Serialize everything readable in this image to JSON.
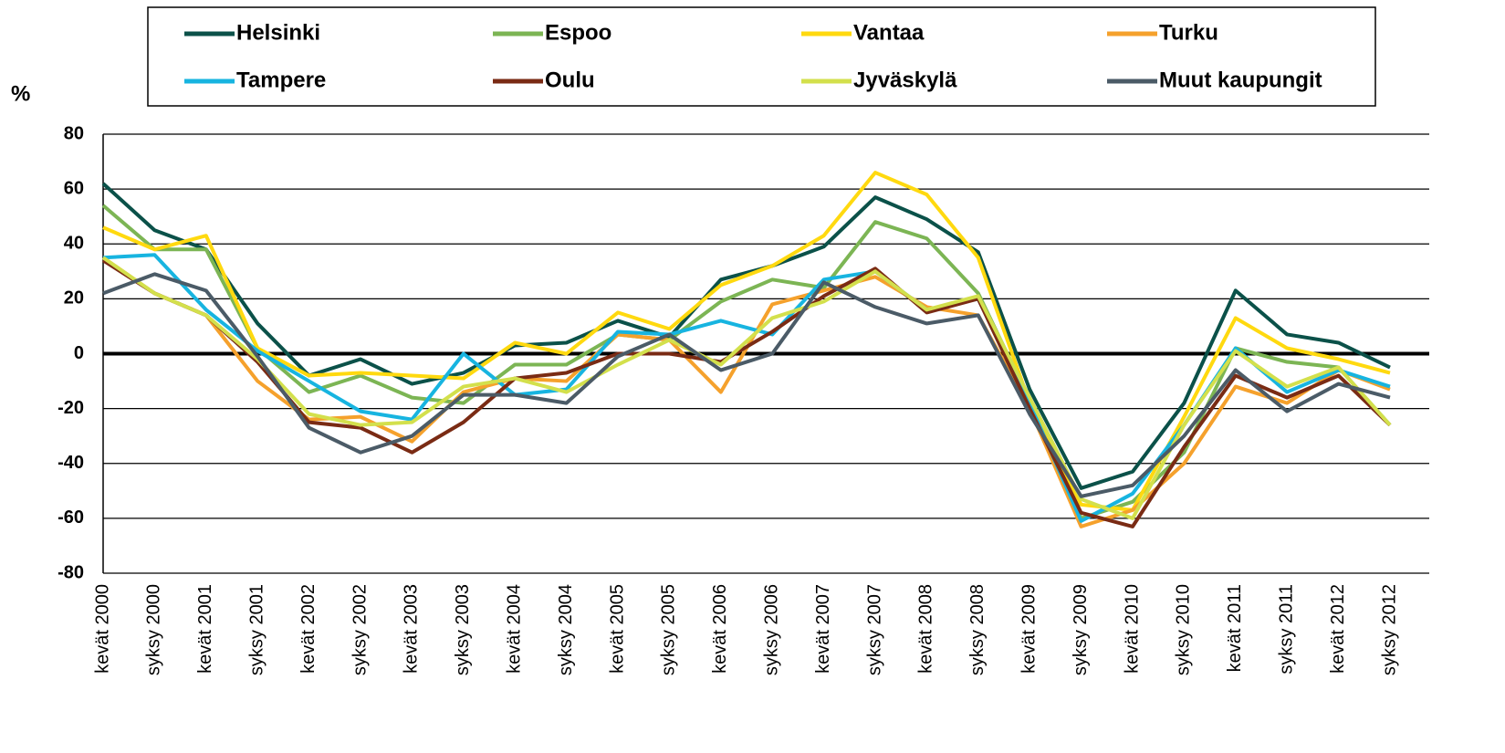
{
  "chart_data": {
    "type": "line",
    "y_unit_label": "%",
    "categories": [
      "kevät 2000",
      "syksy 2000",
      "kevät 2001",
      "syksy 2001",
      "kevät 2002",
      "syksy 2002",
      "kevät 2003",
      "syksy 2003",
      "kevät 2004",
      "syksy 2004",
      "kevät 2005",
      "syksy 2005",
      "kevät 2006",
      "syksy 2006",
      "kevät 2007",
      "syksy 2007",
      "kevät 2008",
      "syksy 2008",
      "kevät 2009",
      "syksy 2009",
      "kevät 2010",
      "syksy 2010",
      "kevät 2011",
      "syksy 2011",
      "kevät 2012",
      "syksy 2012"
    ],
    "series": [
      {
        "name": "Helsinki",
        "color": "#0b5149",
        "values": [
          62,
          45,
          38,
          11,
          -8,
          -2,
          -11,
          -7,
          3,
          4,
          12,
          6,
          27,
          32,
          39,
          57,
          49,
          37,
          -13,
          -49,
          -43,
          -18,
          23,
          7,
          4,
          -5
        ]
      },
      {
        "name": "Espoo",
        "color": "#7cb554",
        "values": [
          54,
          38,
          38,
          2,
          -14,
          -8,
          -16,
          -18,
          -4,
          -4,
          7,
          5,
          19,
          27,
          24,
          48,
          42,
          22,
          -17,
          -60,
          -54,
          -36,
          2,
          -3,
          -5,
          -26
        ]
      },
      {
        "name": "Vantaa",
        "color": "#ffd90f",
        "values": [
          46,
          38,
          43,
          2,
          -8,
          -7,
          -8,
          -9,
          4,
          0,
          15,
          9,
          25,
          32,
          43,
          66,
          58,
          35,
          -18,
          -55,
          -57,
          -23,
          13,
          2,
          -2,
          -7
        ]
      },
      {
        "name": "Turku",
        "color": "#f5a12c",
        "values": [
          35,
          22,
          14,
          -10,
          -24,
          -23,
          -32,
          -14,
          -9,
          -10,
          7,
          5,
          -14,
          18,
          23,
          28,
          17,
          14,
          -20,
          -63,
          -57,
          -40,
          -12,
          -18,
          -6,
          -13
        ]
      },
      {
        "name": "Tampere",
        "color": "#17b4e0",
        "values": [
          35,
          36,
          16,
          1,
          -10,
          -21,
          -24,
          0,
          -15,
          -13,
          8,
          7,
          12,
          7,
          27,
          30,
          16,
          20,
          -18,
          -61,
          -51,
          -26,
          2,
          -14,
          -6,
          -12
        ]
      },
      {
        "name": "Oulu",
        "color": "#7a2b14",
        "values": [
          34,
          22,
          14,
          -3,
          -25,
          -27,
          -36,
          -25,
          -9,
          -7,
          0,
          0,
          -3,
          8,
          21,
          31,
          15,
          20,
          -20,
          -58,
          -63,
          -34,
          -8,
          -16,
          -8,
          -26
        ]
      },
      {
        "name": "Jyväskylä",
        "color": "#d3e04c",
        "values": [
          35,
          22,
          14,
          -2,
          -22,
          -26,
          -25,
          -12,
          -9,
          -14,
          -4,
          5,
          -4,
          13,
          19,
          30,
          16,
          21,
          -16,
          -53,
          -60,
          -26,
          1,
          -12,
          -5,
          -26
        ]
      },
      {
        "name": "Muut kaupungit",
        "color": "#4b5b67",
        "values": [
          22,
          29,
          23,
          -1,
          -27,
          -36,
          -30,
          -15,
          -15,
          -18,
          -1,
          7,
          -6,
          0,
          26,
          17,
          11,
          14,
          -22,
          -52,
          -48,
          -30,
          -6,
          -21,
          -11,
          -16
        ]
      }
    ],
    "ylim": [
      -80,
      80
    ],
    "yticks": [
      -80,
      -60,
      -40,
      -20,
      0,
      20,
      40,
      60,
      80
    ],
    "grid": true,
    "legend": "top"
  }
}
